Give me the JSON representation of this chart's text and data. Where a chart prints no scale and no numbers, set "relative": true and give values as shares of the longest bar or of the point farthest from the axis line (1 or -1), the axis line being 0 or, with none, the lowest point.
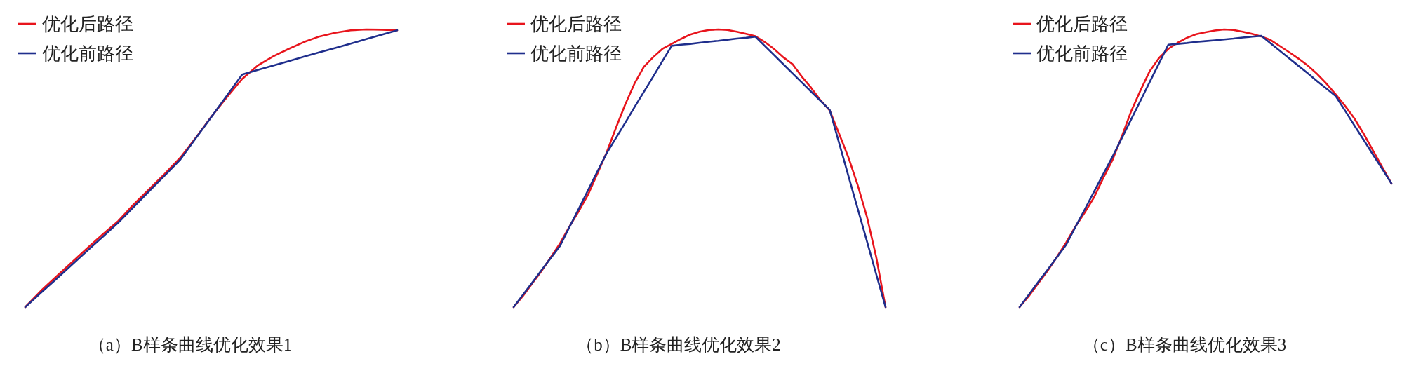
{
  "chart_data": [
    {
      "type": "line",
      "relative": true,
      "title": "（a）B样条曲线优化效果1",
      "legend": "top left",
      "categories": [
        null,
        null,
        null,
        null,
        null,
        null,
        null,
        null,
        null,
        null,
        null,
        null,
        null,
        null,
        null,
        null,
        null,
        null,
        null,
        null,
        null,
        null,
        null,
        null,
        null
      ],
      "series": [
        {
          "name": "优化后路径",
          "color": "#e8141c",
          "values": [
            0,
            0.058,
            0.11,
            0.161,
            0.212,
            0.262,
            0.31,
            0.37,
            0.425,
            0.48,
            0.538,
            0.61,
            0.685,
            0.755,
            0.822,
            0.87,
            0.903,
            0.93,
            0.955,
            0.975,
            0.988,
            0.997,
            1.0,
            0.999,
            0.997
          ]
        },
        {
          "name": "优化前路径",
          "color": "#1f2e8c",
          "values": [
            0,
            0.051,
            0.101,
            0.152,
            0.203,
            0.253,
            0.304,
            0.361,
            0.418,
            0.474,
            0.531,
            0.608,
            0.684,
            0.761,
            0.838,
            0.854,
            0.87,
            0.886,
            0.902,
            0.918,
            0.933,
            0.949,
            0.965,
            0.981,
            0.997
          ]
        }
      ]
    },
    {
      "type": "line",
      "relative": true,
      "title": "（b）B样条曲线优化效果2",
      "legend": "top left",
      "categories": [
        null,
        null,
        null,
        null,
        null,
        null,
        null,
        null,
        null,
        null,
        null,
        null,
        null,
        null,
        null,
        null,
        null,
        null,
        null,
        null,
        null,
        null,
        null,
        null,
        null,
        null,
        null,
        null,
        null,
        null,
        null,
        null,
        null,
        null,
        null,
        null,
        null,
        null,
        null,
        null,
        null
      ],
      "series": [
        {
          "name": "优化后路径",
          "color": "#e8141c",
          "values": [
            0,
            0.04,
            0.085,
            0.13,
            0.18,
            0.23,
            0.29,
            0.345,
            0.405,
            0.48,
            0.557,
            0.645,
            0.73,
            0.805,
            0.865,
            0.9,
            0.93,
            0.948,
            0.966,
            0.982,
            0.992,
            0.998,
            1.0,
            0.998,
            0.992,
            0.984,
            0.976,
            0.955,
            0.93,
            0.9,
            0.875,
            0.83,
            0.79,
            0.745,
            0.708,
            0.625,
            0.54,
            0.44,
            0.325,
            0.18,
            0
          ]
        },
        {
          "name": "优化前路径",
          "color": "#1f2e8c",
          "values": [
            0,
            0.044,
            0.088,
            0.133,
            0.177,
            0.221,
            0.288,
            0.354,
            0.421,
            0.488,
            0.554,
            0.609,
            0.664,
            0.72,
            0.775,
            0.83,
            0.886,
            0.941,
            0.945,
            0.948,
            0.952,
            0.956,
            0.959,
            0.963,
            0.967,
            0.97,
            0.974,
            0.941,
            0.908,
            0.875,
            0.842,
            0.809,
            0.776,
            0.743,
            0.71,
            0.592,
            0.473,
            0.355,
            0.237,
            0.118,
            0
          ]
        }
      ]
    },
    {
      "type": "line",
      "relative": true,
      "title": "（c）B样条曲线优化效果3",
      "legend": "top left",
      "categories": [
        null,
        null,
        null,
        null,
        null,
        null,
        null,
        null,
        null,
        null,
        null,
        null,
        null,
        null,
        null,
        null,
        null,
        null,
        null,
        null,
        null,
        null,
        null,
        null,
        null,
        null,
        null,
        null,
        null,
        null,
        null,
        null,
        null,
        null,
        null,
        null,
        null,
        null,
        null,
        null,
        null
      ],
      "series": [
        {
          "name": "优化后路径",
          "color": "#e8141c",
          "values": [
            0,
            0.04,
            0.085,
            0.13,
            0.18,
            0.232,
            0.29,
            0.34,
            0.395,
            0.465,
            0.53,
            0.615,
            0.705,
            0.78,
            0.85,
            0.897,
            0.93,
            0.952,
            0.97,
            0.983,
            0.99,
            0.996,
            1.0,
            0.998,
            0.992,
            0.984,
            0.975,
            0.962,
            0.94,
            0.918,
            0.895,
            0.87,
            0.84,
            0.805,
            0.766,
            0.725,
            0.68,
            0.625,
            0.565,
            0.505,
            0.445
          ]
        },
        {
          "name": "优化前路径",
          "color": "#1f2e8c",
          "values": [
            0,
            0.045,
            0.09,
            0.134,
            0.179,
            0.224,
            0.288,
            0.351,
            0.415,
            0.479,
            0.542,
            0.609,
            0.676,
            0.743,
            0.811,
            0.878,
            0.945,
            0.948,
            0.951,
            0.955,
            0.958,
            0.961,
            0.964,
            0.967,
            0.971,
            0.974,
            0.977,
            0.95,
            0.923,
            0.896,
            0.869,
            0.842,
            0.814,
            0.787,
            0.76,
            0.708,
            0.655,
            0.603,
            0.55,
            0.498,
            0.445
          ]
        }
      ]
    }
  ]
}
